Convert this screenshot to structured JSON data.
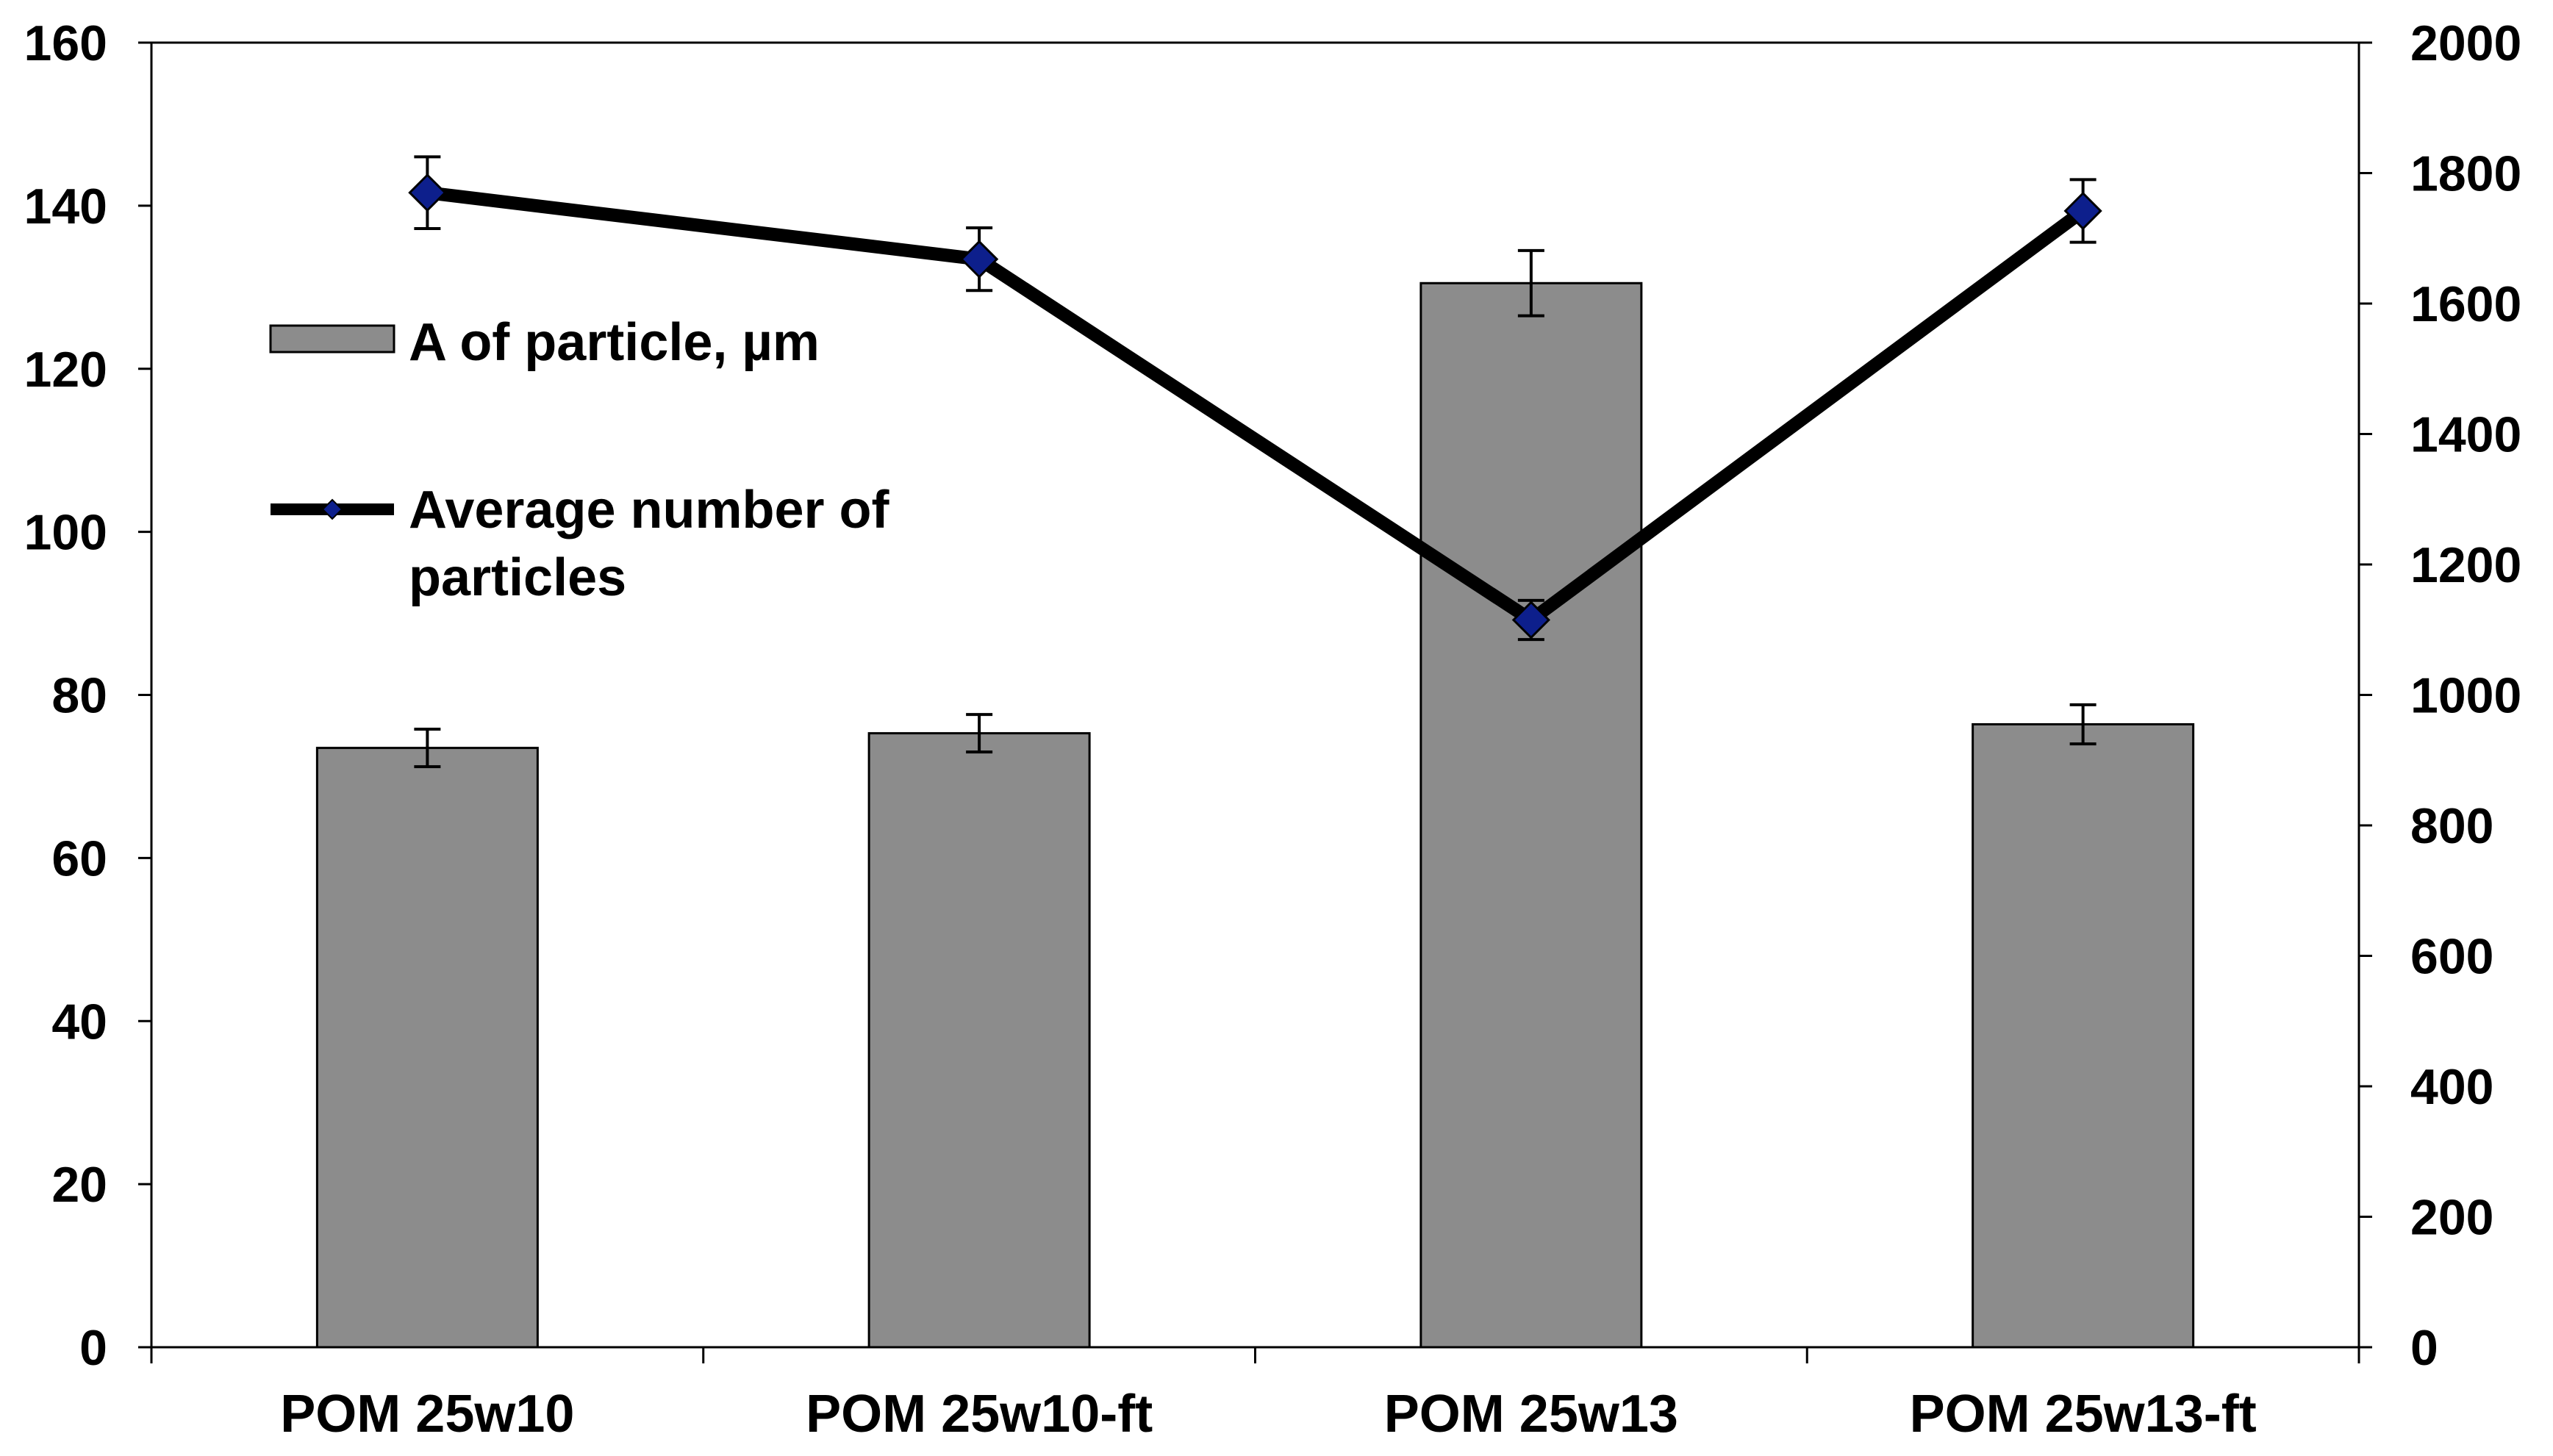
{
  "chart_data": {
    "type": "bar+line",
    "title": "",
    "categories": [
      "POM 25w10",
      "POM 25w10-ft",
      "POM 25w13",
      "POM 25w13-ft"
    ],
    "series": [
      {
        "name": "A of particle, µm",
        "kind": "bar",
        "axis": "left",
        "values": [
          73.5,
          75.3,
          130.5,
          76.4
        ],
        "errors": [
          2.3,
          2.3,
          4.0,
          2.4
        ],
        "color": "#8c8c8c"
      },
      {
        "name": "Average number of particles",
        "kind": "line",
        "axis": "right",
        "values": [
          1770,
          1668,
          1115,
          1742
        ],
        "errors": [
          55,
          48,
          30,
          48
        ],
        "color": "#000000",
        "marker_color": "#0d1f8c"
      }
    ],
    "legend": {
      "position": "upper-left",
      "bar_label": "A of particle, µm",
      "line_label_1": "Average number of",
      "line_label_2": "particles"
    },
    "y_left": {
      "range": [
        0,
        160
      ],
      "ticks": [
        0,
        20,
        40,
        60,
        80,
        100,
        120,
        140,
        160
      ],
      "label": ""
    },
    "y_right": {
      "range": [
        0,
        2000
      ],
      "ticks": [
        0,
        200,
        400,
        600,
        800,
        1000,
        1200,
        1400,
        1600,
        1800,
        2000
      ],
      "label": ""
    },
    "xlabel": "",
    "grid": false
  }
}
